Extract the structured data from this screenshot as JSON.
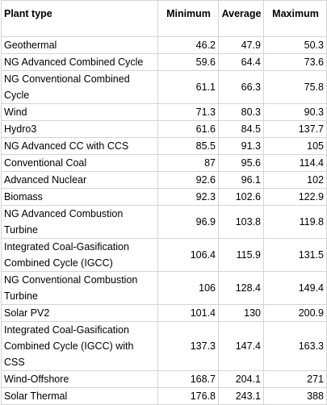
{
  "table": {
    "headers": [
      "Plant type",
      "Minimum",
      "Average",
      "Maximum"
    ],
    "rows": [
      {
        "name": "Geothermal",
        "min": "46.2",
        "avg": "47.9",
        "max": "50.3",
        "lines": 1
      },
      {
        "name": "NG Advanced Combined Cycle",
        "min": "59.6",
        "avg": "64.4",
        "max": "73.6",
        "lines": 1
      },
      {
        "name": "NG Conventional Combined Cycle",
        "min": "61.1",
        "avg": "66.3",
        "max": "75.8",
        "lines": 2
      },
      {
        "name": "Wind",
        "min": "71.3",
        "avg": "80.3",
        "max": "90.3",
        "lines": 1
      },
      {
        "name": "Hydro3",
        "min": "61.6",
        "avg": "84.5",
        "max": "137.7",
        "lines": 1
      },
      {
        "name": "NG Advanced CC with CCS",
        "min": "85.5",
        "avg": "91.3",
        "max": "105",
        "lines": 1
      },
      {
        "name": "Conventional Coal",
        "min": "87",
        "avg": "95.6",
        "max": "114.4",
        "lines": 1
      },
      {
        "name": "Advanced Nuclear",
        "min": "92.6",
        "avg": "96.1",
        "max": "102",
        "lines": 1
      },
      {
        "name": "Biomass",
        "min": "92.3",
        "avg": "102.6",
        "max": "122.9",
        "lines": 1
      },
      {
        "name": "NG Advanced Combustion Turbine",
        "min": "96.9",
        "avg": "103.8",
        "max": "119.8",
        "lines": 2
      },
      {
        "name": "Integrated Coal-Gasification Combined Cycle (IGCC)",
        "min": "106.4",
        "avg": "115.9",
        "max": "131.5",
        "lines": 2
      },
      {
        "name": "NG Conventional Combustion Turbine",
        "min": "106",
        "avg": "128.4",
        "max": "149.4",
        "lines": 2
      },
      {
        "name": "Solar PV2",
        "min": "101.4",
        "avg": "130",
        "max": "200.9",
        "lines": 1
      },
      {
        "name": "Integrated Coal-Gasification Combined Cycle (IGCC) with CSS",
        "min": "137.3",
        "avg": "147.4",
        "max": "163.3",
        "lines": 3
      },
      {
        "name": "Wind-Offshore",
        "min": "168.7",
        "avg": "204.1",
        "max": "271",
        "lines": 1
      },
      {
        "name": "Solar Thermal",
        "min": "176.8",
        "avg": "243.1",
        "max": "388",
        "lines": 1
      }
    ]
  }
}
